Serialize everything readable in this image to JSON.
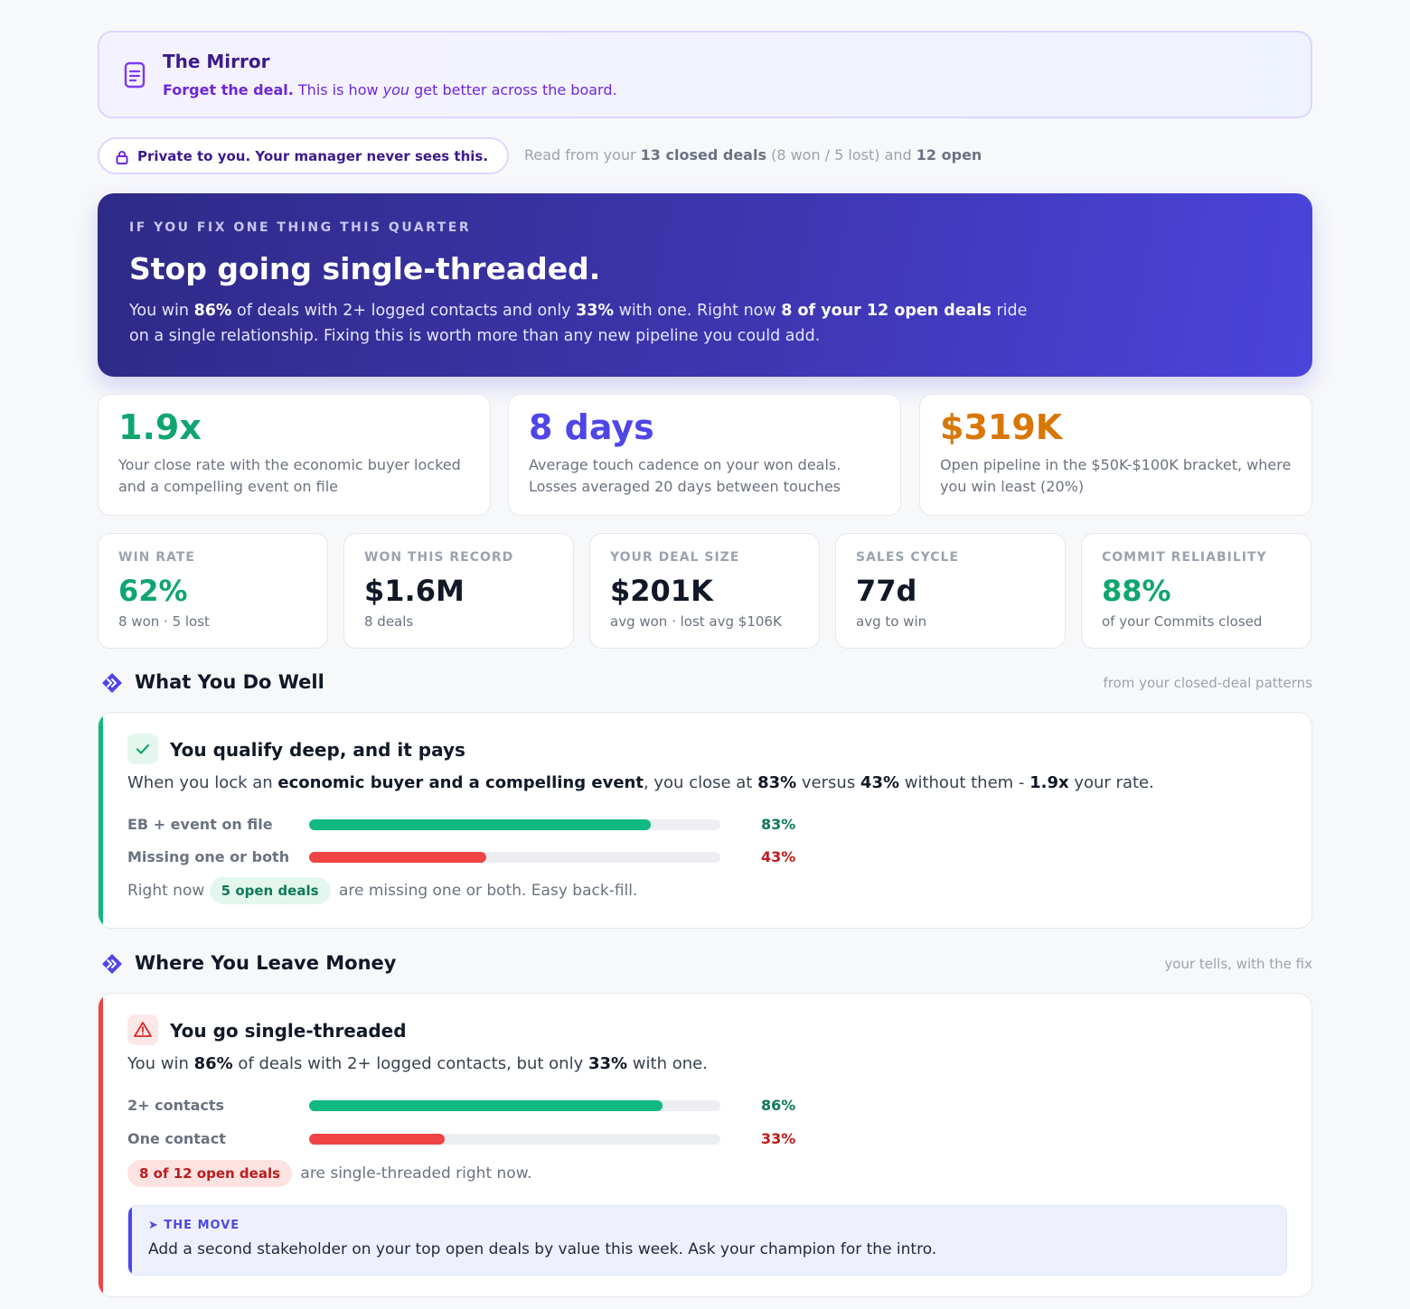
{
  "header": {
    "title": "The Mirror",
    "sub_bold": "Forget the deal.",
    "sub_pre": " This is how ",
    "sub_em": "you",
    "sub_post": " get better across the board.",
    "icon": "document-icon"
  },
  "privacy": {
    "pill_text": "Private to you. Your manager never sees this.",
    "icon": "lock-icon",
    "read_prefix": "Read from your ",
    "closed_deals": "13 closed deals",
    "won_lost": " (8 won / 5 lost) and ",
    "open_deals": "12 open"
  },
  "hero": {
    "eyebrow": "IF YOU FIX ONE THING THIS QUARTER",
    "title": "Stop going single-threaded.",
    "body_1": "You win ",
    "pct_multi": "86%",
    "body_2": " of deals with 2+ logged contacts and only ",
    "pct_single": "33%",
    "body_3": " with one. Right now ",
    "open_highlight": "8 of your 12 open deals",
    "body_4": " ride on a single relationship. Fixing this is worth more than any new pipeline you could add."
  },
  "big_stats": [
    {
      "value": "1.9x",
      "desc": "Your close rate with the economic buyer locked and a compelling event on file",
      "color": "#10a56f"
    },
    {
      "value": "8 days",
      "desc": "Average touch cadence on your won deals. Losses averaged 20 days between touches",
      "color": "#4f46e5"
    },
    {
      "value": "$319K",
      "desc": "Open pipeline in the $50K-$100K bracket, where you win least (20%)",
      "color": "#d97706"
    }
  ],
  "small_stats": [
    {
      "label": "WIN RATE",
      "value": "62%",
      "sub": "8 won · 5 lost"
    },
    {
      "label": "WON THIS RECORD",
      "value": "$1.6M",
      "sub": "8 deals"
    },
    {
      "label": "YOUR DEAL SIZE",
      "value": "$201K",
      "sub": "avg won · lost avg $106K"
    },
    {
      "label": "SALES CYCLE",
      "value": "77d",
      "sub": "avg to win"
    },
    {
      "label": "COMMIT RELIABILITY",
      "value": "88%",
      "sub": "of your Commits closed"
    }
  ],
  "colors": {
    "green": "#10b981",
    "green_text": "#0f7a55",
    "red": "#ef4444",
    "red_text": "#b91c1c",
    "accent": "#4f46e5"
  },
  "section_well": {
    "title": "What You Do Well",
    "hint": "from your closed-deal patterns"
  },
  "card_well": {
    "title": "You qualify deep, and it pays",
    "icon": "check-icon",
    "body_1": "When you lock an ",
    "body_b1": "economic buyer and a compelling event",
    "body_2": ", you close at ",
    "body_b2": "83%",
    "body_3": " versus ",
    "body_b3": "43%",
    "body_4": " without them - ",
    "body_b4": "1.9x",
    "body_5": " your rate.",
    "bars": [
      {
        "label": "EB + event on file",
        "pct_text": "83%",
        "value": 0.83,
        "tone": "green"
      },
      {
        "label": "Missing one or both",
        "pct_text": "43%",
        "value": 0.43,
        "tone": "red"
      }
    ],
    "foot_pre": "Right now ",
    "foot_chip": "5 open deals",
    "foot_post": " are missing one or both. Easy back-fill."
  },
  "section_money": {
    "title": "Where You Leave Money",
    "hint": "your tells, with the fix"
  },
  "card_money": {
    "title": "You go single-threaded",
    "icon": "warning-icon",
    "body_1": "You win ",
    "body_b1": "86%",
    "body_2": " of deals with 2+ logged contacts, but only ",
    "body_b2": "33%",
    "body_3": " with one.",
    "bars": [
      {
        "label": "2+ contacts",
        "pct_text": "86%",
        "value": 0.86,
        "tone": "green"
      },
      {
        "label": "One contact",
        "pct_text": "33%",
        "value": 0.33,
        "tone": "red"
      }
    ],
    "foot_chip": "8 of 12 open deals",
    "foot_post": " are single-threaded right now.",
    "move_label": "➤ THE MOVE",
    "move_text": "Add a second stakeholder on your top open deals by value this week. Ask your champion for the intro."
  }
}
